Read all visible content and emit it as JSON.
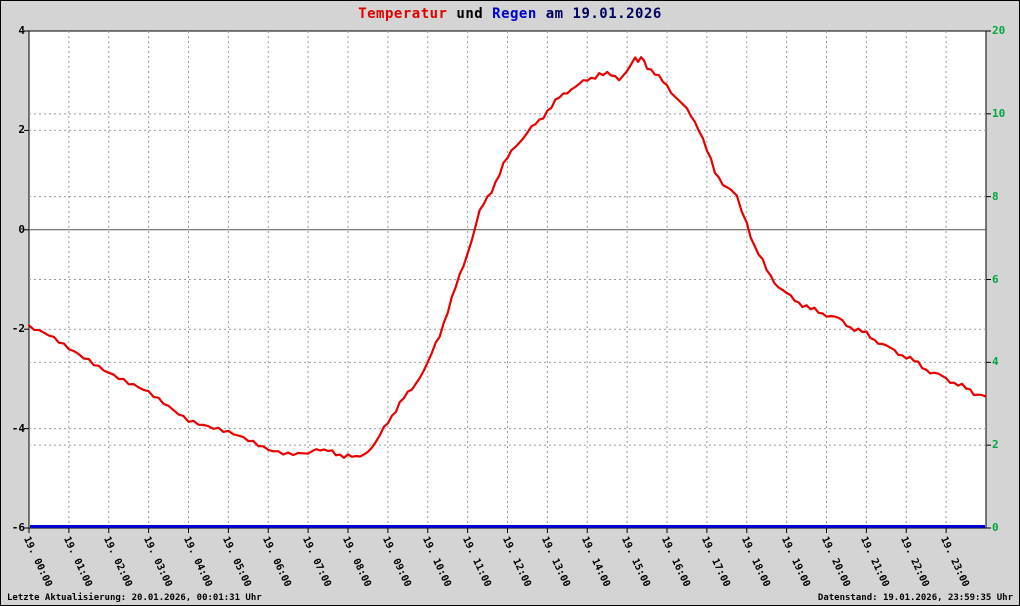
{
  "title": {
    "part_temperatur": "Temperatur",
    "part_und": " und ",
    "part_regen": "Regen",
    "part_date": " am 19.01.2026"
  },
  "footer": {
    "left": "Letzte Aktualisierung: 20.01.2026, 00:01:31 Uhr",
    "right": "Datenstand: 19.01.2026, 23:59:35 Uhr"
  },
  "colors": {
    "background": "#d4d4d4",
    "plot_background": "#ffffff",
    "temperature_line": "#e60000",
    "rain_line": "#0000cc",
    "right_axis_labels": "#00a840",
    "gridlines": "#9b9b9b",
    "zero_line": "#555555"
  },
  "chart_data": {
    "type": "line",
    "title": "Temperatur und Regen am 19.01.2026",
    "grid": true,
    "legend_position": "none",
    "x_axis": {
      "range_hours": [
        0,
        24
      ],
      "ticks": [
        "19. 00:00",
        "19. 01:00",
        "19. 02:00",
        "19. 03:00",
        "19. 04:00",
        "19. 05:00",
        "19. 06:00",
        "19. 07:00",
        "19. 08:00",
        "19. 09:00",
        "19. 10:00",
        "19. 11:00",
        "19. 12:00",
        "19. 13:00",
        "19. 14:00",
        "19. 15:00",
        "19. 16:00",
        "19. 17:00",
        "19. 18:00",
        "19. 19:00",
        "19. 20:00",
        "19. 21:00",
        "19. 22:00",
        "19. 23:00"
      ]
    },
    "y_left": {
      "range": [
        -6,
        4
      ],
      "ticks": [
        4,
        2,
        0,
        -2,
        -4,
        -6
      ],
      "color": "#000000"
    },
    "y_right": {
      "ticks": [
        20,
        10,
        8,
        6,
        4,
        2,
        0
      ],
      "color": "#00a840",
      "scale": "nonlinear-rain"
    },
    "series": [
      {
        "name": "Temperatur",
        "axis": "left",
        "color": "#e60000",
        "points": [
          [
            0,
            -1.95
          ],
          [
            0.5,
            -2.15
          ],
          [
            1,
            -2.4
          ],
          [
            1.5,
            -2.6
          ],
          [
            2,
            -2.85
          ],
          [
            2.5,
            -3.1
          ],
          [
            3,
            -3.3
          ],
          [
            3.5,
            -3.55
          ],
          [
            4,
            -3.8
          ],
          [
            4.5,
            -3.95
          ],
          [
            5,
            -4.1
          ],
          [
            5.5,
            -4.25
          ],
          [
            6,
            -4.4
          ],
          [
            6.5,
            -4.48
          ],
          [
            7,
            -4.5
          ],
          [
            7.2,
            -4.38
          ],
          [
            7.4,
            -4.45
          ],
          [
            7.7,
            -4.5
          ],
          [
            8,
            -4.55
          ],
          [
            8.2,
            -4.6
          ],
          [
            8.4,
            -4.5
          ],
          [
            8.7,
            -4.3
          ],
          [
            9,
            -3.85
          ],
          [
            9.3,
            -3.5
          ],
          [
            9.6,
            -3.2
          ],
          [
            10,
            -2.7
          ],
          [
            10.3,
            -2.1
          ],
          [
            10.6,
            -1.4
          ],
          [
            10.9,
            -0.7
          ],
          [
            11.1,
            -0.2
          ],
          [
            11.3,
            0.35
          ],
          [
            11.6,
            0.8
          ],
          [
            11.9,
            1.3
          ],
          [
            12.2,
            1.7
          ],
          [
            12.5,
            1.95
          ],
          [
            12.8,
            2.2
          ],
          [
            13,
            2.4
          ],
          [
            13.3,
            2.65
          ],
          [
            13.6,
            2.85
          ],
          [
            14,
            3.0
          ],
          [
            14.3,
            3.15
          ],
          [
            14.6,
            3.1
          ],
          [
            14.8,
            3.05
          ],
          [
            15,
            3.2
          ],
          [
            15.2,
            3.42
          ],
          [
            15.35,
            3.45
          ],
          [
            15.5,
            3.3
          ],
          [
            15.8,
            3.05
          ],
          [
            16,
            2.9
          ],
          [
            16.3,
            2.6
          ],
          [
            16.6,
            2.3
          ],
          [
            16.8,
            2.05
          ],
          [
            17,
            1.6
          ],
          [
            17.2,
            1.15
          ],
          [
            17.4,
            0.95
          ],
          [
            17.6,
            0.8
          ],
          [
            17.75,
            0.7
          ],
          [
            18,
            0.15
          ],
          [
            18.2,
            -0.35
          ],
          [
            18.5,
            -0.8
          ],
          [
            18.8,
            -1.15
          ],
          [
            19,
            -1.3
          ],
          [
            19.3,
            -1.45
          ],
          [
            19.6,
            -1.6
          ],
          [
            20,
            -1.7
          ],
          [
            20.3,
            -1.8
          ],
          [
            20.6,
            -1.95
          ],
          [
            21,
            -2.1
          ],
          [
            21.3,
            -2.25
          ],
          [
            21.6,
            -2.4
          ],
          [
            22,
            -2.55
          ],
          [
            22.3,
            -2.7
          ],
          [
            22.6,
            -2.85
          ],
          [
            23,
            -3.0
          ],
          [
            23.3,
            -3.1
          ],
          [
            23.6,
            -3.25
          ],
          [
            23.98,
            -3.35
          ]
        ]
      },
      {
        "name": "Regen",
        "axis": "right",
        "color": "#0000cc",
        "constant_value": 0
      }
    ]
  }
}
